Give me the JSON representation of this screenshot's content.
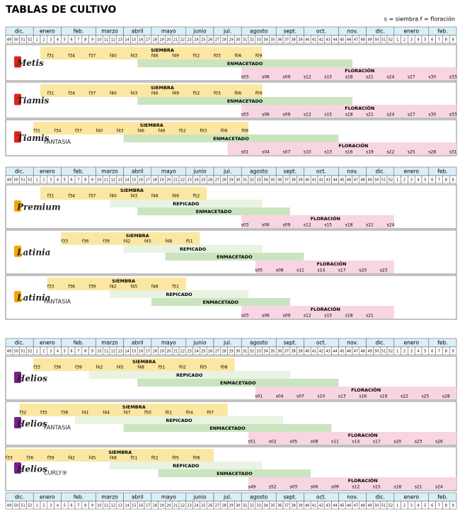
{
  "title": "TABLAS DE CULTIVO",
  "legend": "s = siembra  f = floración",
  "months": [
    "dic.",
    "enero",
    "feb.",
    "marzo",
    "abril",
    "mayo",
    "junio",
    "jul.",
    "agosto",
    "sept.",
    "oct.",
    "nov.",
    "dic.",
    "enero",
    "feb."
  ],
  "weeks": [
    49,
    50,
    51,
    52,
    1,
    2,
    3,
    4,
    5,
    6,
    7,
    8,
    9,
    10,
    11,
    12,
    13,
    14,
    15,
    16,
    17,
    18,
    19,
    20,
    21,
    22,
    23,
    24,
    25,
    26,
    27,
    28,
    29,
    30,
    31,
    32,
    33,
    34,
    35,
    36,
    37,
    38,
    39,
    40,
    41,
    42,
    43,
    44,
    45,
    46,
    47,
    48,
    49,
    50,
    51,
    52,
    1,
    2,
    3,
    4,
    5,
    6,
    7,
    8,
    9
  ],
  "phases": {
    "sowing": "SIEMBRA",
    "transplant": "REPICADO",
    "potting": "ENMACETADO",
    "flowering": "FLORACIÓN"
  },
  "groups": [
    {
      "varieties": [
        {
          "name": "Metis",
          "sowing": [
            "f31",
            "f34",
            "f37",
            "f40",
            "f43",
            "f46",
            "f49",
            "f52",
            "f03",
            "f06",
            "f09"
          ],
          "flowering": [
            "s03",
            "s06",
            "s09",
            "s12",
            "s15",
            "s18",
            "s21",
            "s24",
            "s27",
            "s30",
            "s33"
          ]
        },
        {
          "name": "Tiamis",
          "sowing": [
            "f31",
            "f34",
            "f37",
            "f40",
            "f43",
            "f46",
            "f49",
            "f52",
            "f03",
            "f06",
            "f09"
          ],
          "flowering": [
            "s03",
            "s06",
            "s09",
            "s12",
            "s15",
            "s18",
            "s21",
            "s24",
            "s27",
            "s30",
            "s33"
          ]
        },
        {
          "name": "Tiamis",
          "variant": "FANTASIA",
          "sowing": [
            "f31",
            "f34",
            "f37",
            "f40",
            "f43",
            "f46",
            "f49",
            "f52",
            "f03",
            "f06",
            "f09"
          ],
          "flowering": [
            "s01",
            "s04",
            "s07",
            "s10",
            "s13",
            "s16",
            "s19",
            "s22",
            "s25",
            "s28",
            "s31"
          ]
        }
      ]
    },
    {
      "varieties": [
        {
          "name": "Premium",
          "sowing": [
            "f31",
            "f34",
            "f37",
            "f40",
            "f43",
            "f46",
            "f49",
            "f52"
          ],
          "flowering": [
            "s03",
            "s06",
            "s09",
            "s12",
            "s15",
            "s18",
            "s21",
            "s24"
          ]
        },
        {
          "name": "Latinia",
          "sowing": [
            "f33",
            "f36",
            "f39",
            "f42",
            "f45",
            "f48",
            "f51"
          ],
          "flowering": [
            "s05",
            "s08",
            "s11",
            "s14",
            "s17",
            "s20",
            "s23"
          ]
        },
        {
          "name": "Latinia",
          "variant": "FANTASIA",
          "sowing": [
            "f33",
            "f36",
            "f39",
            "f42",
            "f45",
            "f48",
            "f51"
          ],
          "flowering": [
            "s03",
            "s06",
            "s09",
            "s12",
            "s15",
            "s18",
            "s21"
          ]
        }
      ]
    },
    {
      "varieties": [
        {
          "name": "Helios",
          "sowing": [
            "f33",
            "f36",
            "f39",
            "f42",
            "f45",
            "f48",
            "f51",
            "f02",
            "f05",
            "f08"
          ],
          "flowering": [
            "s01",
            "s04",
            "s07",
            "s10",
            "s13",
            "s16",
            "s19",
            "s22",
            "s25",
            "s28"
          ]
        },
        {
          "name": "Helios",
          "variant": "FANTASIA",
          "sowing": [
            "f32",
            "f35",
            "f38",
            "f41",
            "f44",
            "f47",
            "f50",
            "f01",
            "f04",
            "f07"
          ],
          "flowering": [
            "s51",
            "s02",
            "s05",
            "s08",
            "s11",
            "s14",
            "s17",
            "s20",
            "s23",
            "s26"
          ]
        },
        {
          "name": "Helios",
          "variant": "CURLY®",
          "sowing": [
            "f33",
            "f36",
            "f39",
            "f42",
            "f45",
            "f48",
            "f51",
            "f02",
            "f05",
            "f08"
          ],
          "flowering": [
            "s49",
            "s52",
            "s03",
            "s06",
            "s09",
            "s12",
            "s15",
            "s18",
            "s21",
            "s24"
          ]
        }
      ]
    }
  ]
}
